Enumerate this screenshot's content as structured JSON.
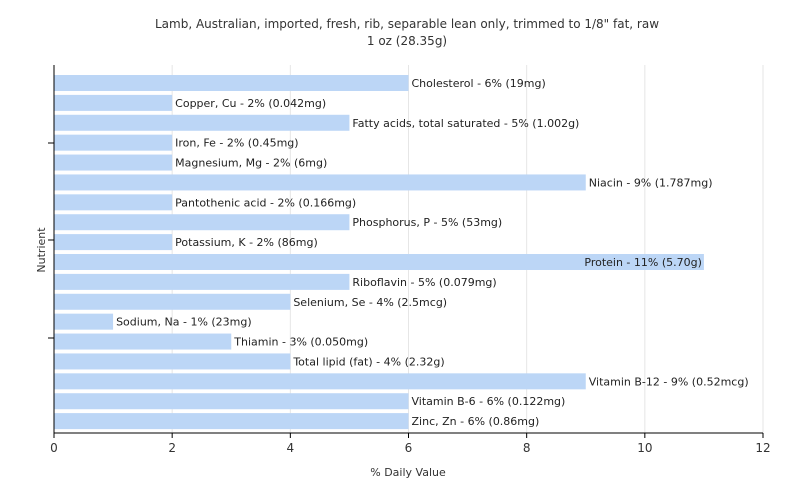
{
  "chart_data": {
    "type": "bar",
    "orientation": "horizontal",
    "title": "Lamb, Australian, imported, fresh, rib, separable lean only, trimmed to 1/8\" fat, raw",
    "subtitle": "1 oz (28.35g)",
    "xlabel": "% Daily Value",
    "ylabel": "Nutrient",
    "xlim": [
      0,
      12
    ],
    "xticks": [
      0,
      2,
      4,
      6,
      8,
      10,
      12
    ],
    "grid": true,
    "bar_color": "#bcd6f6",
    "categories": [
      "Cholesterol",
      "Copper, Cu",
      "Fatty acids, total saturated",
      "Iron, Fe",
      "Magnesium, Mg",
      "Niacin",
      "Pantothenic acid",
      "Phosphorus, P",
      "Potassium, K",
      "Protein",
      "Riboflavin",
      "Selenium, Se",
      "Sodium, Na",
      "Thiamin",
      "Total lipid (fat)",
      "Vitamin B-12",
      "Vitamin B-6",
      "Zinc, Zn"
    ],
    "values": [
      6,
      2,
      5,
      2,
      2,
      9,
      2,
      5,
      2,
      11,
      5,
      4,
      1,
      3,
      4,
      9,
      6,
      6
    ],
    "labels": [
      "Cholesterol - 6% (19mg)",
      "Copper, Cu - 2% (0.042mg)",
      "Fatty acids, total saturated - 5% (1.002g)",
      "Iron, Fe - 2% (0.45mg)",
      "Magnesium, Mg - 2% (6mg)",
      "Niacin - 9% (1.787mg)",
      "Pantothenic acid - 2% (0.166mg)",
      "Phosphorus, P - 5% (53mg)",
      "Potassium, K - 2% (86mg)",
      "Protein - 11% (5.70g)",
      "Riboflavin - 5% (0.079mg)",
      "Selenium, Se - 4% (2.5mcg)",
      "Sodium, Na - 1% (23mg)",
      "Thiamin - 3% (0.050mg)",
      "Total lipid (fat) - 4% (2.32g)",
      "Vitamin B-12 - 9% (0.52mcg)",
      "Vitamin B-6 - 6% (0.122mg)",
      "Zinc, Zn - 6% (0.86mg)"
    ]
  }
}
